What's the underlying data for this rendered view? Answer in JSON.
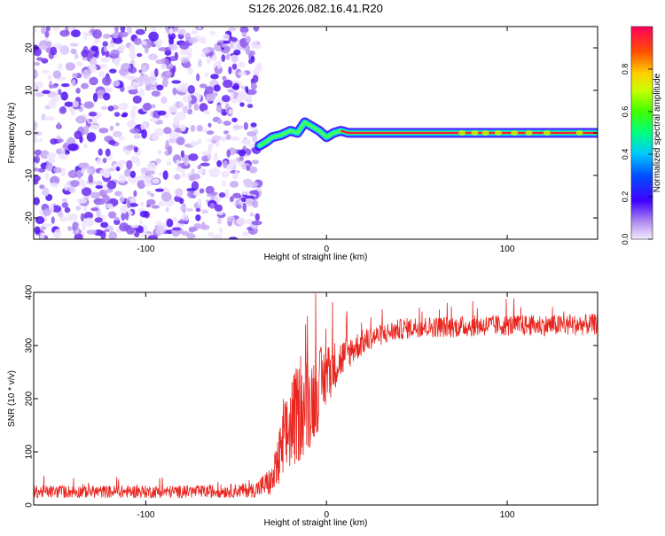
{
  "title": "S126.2026.082.16.41.R20",
  "chart_data": [
    {
      "type": "heatmap",
      "xlabel": "Height of straight line (km)",
      "ylabel": "Frequency (Hz)",
      "xlim": [
        -162,
        150
      ],
      "ylim": [
        -25,
        25
      ],
      "xticks": [
        -100,
        0,
        100
      ],
      "yticks": [
        20,
        10,
        0,
        -10,
        -20
      ],
      "noise_region_x": [
        -162,
        -37
      ],
      "ridge": {
        "x": [
          -37,
          -33,
          -30,
          -25,
          -20,
          -16,
          -12,
          -8,
          -4,
          0,
          4,
          8,
          12,
          150
        ],
        "frequency": [
          -3,
          -2,
          -1,
          -0.5,
          0.5,
          0,
          2.5,
          1.5,
          0.5,
          -1,
          0,
          0.5,
          0,
          0
        ]
      },
      "colorbar": {
        "label": "Normalized spectral amplitude",
        "range": [
          0,
          1
        ],
        "ticks": [
          "0.0",
          "0.2",
          "0.4",
          "0.6",
          "0.8"
        ]
      },
      "colors": {
        "low": "#9a6bd6",
        "mid": "#00d0ff",
        "high": "#ff0040"
      }
    },
    {
      "type": "line",
      "xlabel": "Height of straight line (km)",
      "ylabel": "SNR (10 * v/v)",
      "xlim": [
        -162,
        150
      ],
      "ylim": [
        0,
        400
      ],
      "xticks": [
        -100,
        0,
        100
      ],
      "yticks": [
        0,
        100,
        200,
        300,
        400
      ],
      "series": [
        {
          "name": "SNR",
          "color": "#e8251f",
          "x": [
            -162,
            -130,
            -100,
            -70,
            -40,
            -30,
            -25,
            -20,
            -15,
            -10,
            -5,
            0,
            5,
            10,
            15,
            20,
            25,
            30,
            40,
            50,
            70,
            90,
            110,
            130,
            150
          ],
          "mean": [
            25,
            25,
            25,
            25,
            28,
            45,
            95,
            150,
            175,
            190,
            215,
            245,
            265,
            280,
            295,
            305,
            315,
            320,
            330,
            335,
            335,
            338,
            338,
            338,
            340
          ],
          "spread": [
            12,
            12,
            12,
            12,
            14,
            30,
            70,
            90,
            95,
            90,
            80,
            60,
            45,
            35,
            28,
            25,
            22,
            20,
            20,
            20,
            20,
            20,
            20,
            20,
            20
          ]
        }
      ]
    }
  ]
}
